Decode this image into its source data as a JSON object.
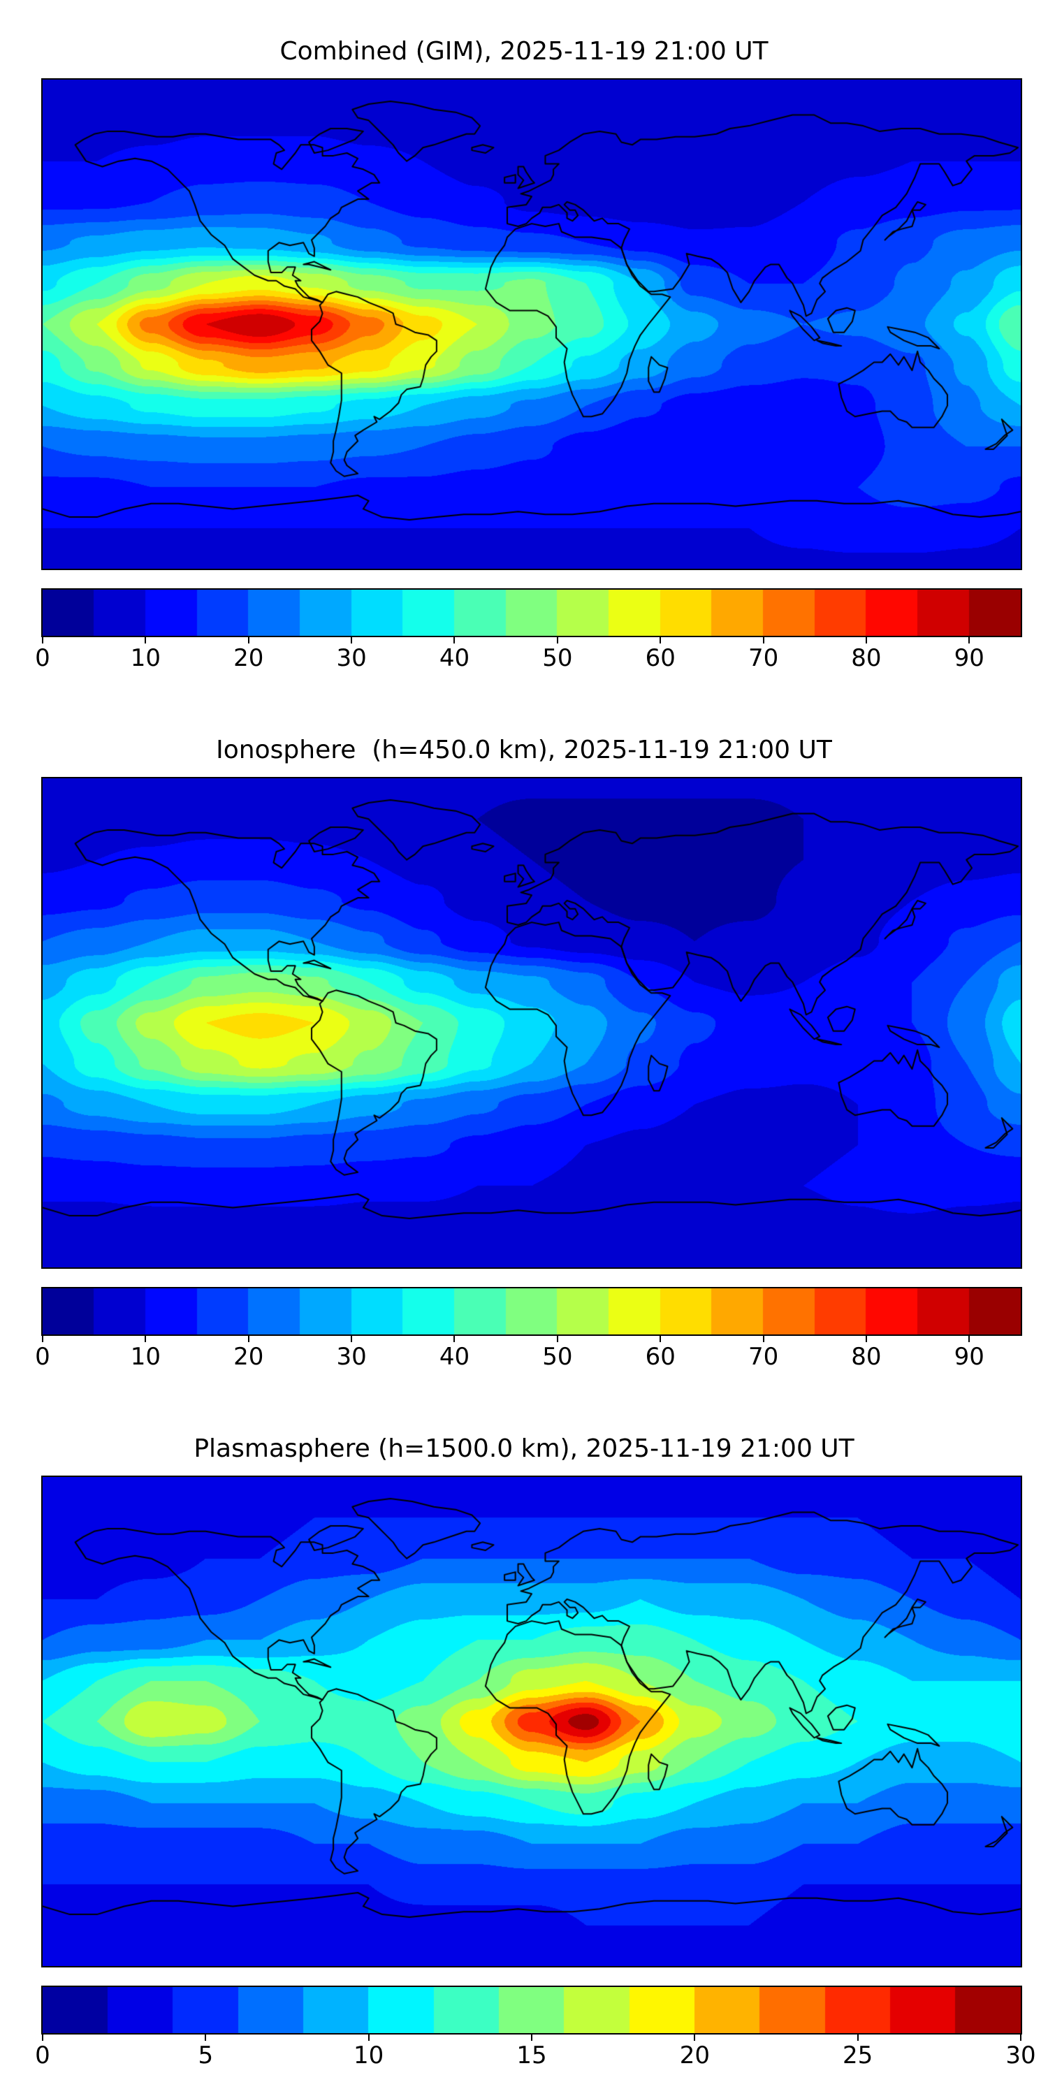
{
  "figure": {
    "background": "#ffffff"
  },
  "chart_data": [
    {
      "type": "heatmap",
      "title": "Combined (GIM), 2025-11-19 21:00 UT",
      "colormap": "jet",
      "projection": "equirectangular",
      "lon_range": [
        -180,
        180
      ],
      "lat_range": [
        -90,
        90
      ],
      "colorbar_orientation": "horizontal",
      "levels": {
        "vmin": 0,
        "vmax": 95,
        "step": 5
      },
      "colorbar_ticks": [
        0,
        10,
        20,
        30,
        40,
        50,
        60,
        70,
        80,
        90
      ],
      "grid_lons": [
        -180,
        -160,
        -140,
        -120,
        -100,
        -80,
        -60,
        -40,
        -20,
        0,
        20,
        40,
        60,
        80,
        100,
        120,
        140,
        160,
        180
      ],
      "grid_lats": [
        90,
        75,
        60,
        45,
        30,
        15,
        0,
        -15,
        -30,
        -45,
        -60,
        -75,
        -90
      ],
      "values": [
        [
          8,
          8,
          8,
          8,
          8,
          8,
          8,
          8,
          8,
          8,
          8,
          8,
          8,
          8,
          8,
          8,
          8,
          8,
          8
        ],
        [
          8,
          8,
          8,
          9,
          9,
          9,
          8,
          8,
          7,
          7,
          7,
          6,
          6,
          7,
          8,
          8,
          8,
          8,
          8
        ],
        [
          10,
          10,
          11,
          12,
          12,
          12,
          11,
          10,
          8,
          7,
          6,
          6,
          6,
          7,
          8,
          9,
          10,
          10,
          10
        ],
        [
          14,
          14,
          15,
          17,
          18,
          17,
          15,
          13,
          11,
          9,
          8,
          7,
          7,
          8,
          10,
          12,
          13,
          14,
          14
        ],
        [
          24,
          26,
          28,
          29,
          28,
          26,
          22,
          19,
          17,
          16,
          15,
          13,
          11,
          11,
          13,
          16,
          19,
          22,
          24
        ],
        [
          34,
          40,
          48,
          55,
          58,
          54,
          48,
          44,
          44,
          46,
          40,
          30,
          18,
          15,
          15,
          17,
          21,
          26,
          34
        ],
        [
          45,
          55,
          72,
          85,
          90,
          83,
          72,
          62,
          55,
          47,
          42,
          34,
          27,
          22,
          20,
          21,
          24,
          31,
          45
        ],
        [
          38,
          46,
          56,
          64,
          68,
          66,
          62,
          56,
          48,
          40,
          34,
          28,
          22,
          18,
          16,
          16,
          19,
          26,
          38
        ],
        [
          30,
          33,
          36,
          38,
          38,
          36,
          33,
          30,
          27,
          24,
          20,
          16,
          13,
          12,
          12,
          14,
          18,
          24,
          30
        ],
        [
          20,
          21,
          22,
          23,
          23,
          22,
          21,
          20,
          18,
          16,
          13,
          11,
          10,
          10,
          11,
          13,
          17,
          20,
          20
        ],
        [
          14,
          14,
          15,
          15,
          15,
          15,
          14,
          14,
          13,
          12,
          12,
          11,
          11,
          12,
          13,
          15,
          18,
          17,
          14
        ],
        [
          10,
          10,
          10,
          10,
          10,
          10,
          10,
          10,
          10,
          10,
          10,
          10,
          10,
          10,
          11,
          12,
          12,
          11,
          10
        ],
        [
          9,
          9,
          9,
          9,
          9,
          9,
          9,
          9,
          9,
          9,
          9,
          9,
          9,
          9,
          9,
          9,
          9,
          9,
          9
        ]
      ]
    },
    {
      "type": "heatmap",
      "title": "Ionosphere  (h=450.0 km), 2025-11-19 21:00 UT",
      "colormap": "jet",
      "projection": "equirectangular",
      "lon_range": [
        -180,
        180
      ],
      "lat_range": [
        -90,
        90
      ],
      "colorbar_orientation": "horizontal",
      "levels": {
        "vmin": 0,
        "vmax": 95,
        "step": 5
      },
      "colorbar_ticks": [
        0,
        10,
        20,
        30,
        40,
        50,
        60,
        70,
        80,
        90
      ],
      "grid_lons": [
        -180,
        -160,
        -140,
        -120,
        -100,
        -80,
        -60,
        -40,
        -20,
        0,
        20,
        40,
        60,
        80,
        100,
        120,
        140,
        160,
        180
      ],
      "grid_lats": [
        90,
        75,
        60,
        45,
        30,
        15,
        0,
        -15,
        -30,
        -45,
        -60,
        -75,
        -90
      ],
      "values": [
        [
          6,
          6,
          6,
          6,
          6,
          6,
          6,
          6,
          6,
          6,
          6,
          6,
          6,
          6,
          6,
          6,
          6,
          6,
          6
        ],
        [
          7,
          7,
          7,
          8,
          8,
          8,
          7,
          6,
          5,
          4,
          4,
          4,
          4,
          4,
          5,
          6,
          6,
          7,
          7
        ],
        [
          9,
          10,
          11,
          12,
          12,
          11,
          10,
          8,
          6,
          5,
          4,
          3,
          3,
          4,
          5,
          6,
          7,
          8,
          9
        ],
        [
          13,
          14,
          16,
          18,
          18,
          16,
          14,
          11,
          8,
          6,
          5,
          4,
          4,
          4,
          6,
          8,
          10,
          12,
          13
        ],
        [
          20,
          22,
          25,
          27,
          27,
          25,
          21,
          16,
          12,
          9,
          7,
          6,
          5,
          6,
          7,
          9,
          12,
          16,
          20
        ],
        [
          28,
          33,
          40,
          46,
          48,
          46,
          40,
          33,
          28,
          26,
          22,
          15,
          10,
          9,
          10,
          12,
          15,
          20,
          28
        ],
        [
          33,
          42,
          52,
          60,
          62,
          60,
          53,
          45,
          38,
          32,
          27,
          21,
          16,
          13,
          12,
          12,
          15,
          22,
          33
        ],
        [
          30,
          38,
          46,
          53,
          56,
          54,
          49,
          43,
          36,
          30,
          25,
          19,
          14,
          12,
          11,
          11,
          13,
          20,
          30
        ],
        [
          24,
          27,
          30,
          32,
          32,
          30,
          27,
          24,
          21,
          18,
          15,
          12,
          10,
          9,
          9,
          10,
          13,
          18,
          24
        ],
        [
          16,
          17,
          18,
          19,
          19,
          18,
          17,
          16,
          14,
          12,
          10,
          9,
          8,
          8,
          9,
          10,
          13,
          15,
          16
        ],
        [
          11,
          11,
          12,
          12,
          12,
          12,
          11,
          11,
          10,
          10,
          9,
          9,
          9,
          9,
          10,
          11,
          13,
          12,
          11
        ],
        [
          8,
          8,
          8,
          8,
          8,
          8,
          8,
          8,
          8,
          8,
          8,
          8,
          8,
          8,
          8,
          9,
          9,
          8,
          8
        ],
        [
          7,
          7,
          7,
          7,
          7,
          7,
          7,
          7,
          7,
          7,
          7,
          7,
          7,
          7,
          7,
          7,
          7,
          7,
          7
        ]
      ]
    },
    {
      "type": "heatmap",
      "title": "Plasmasphere (h=1500.0 km), 2025-11-19 21:00 UT",
      "colormap": "jet",
      "projection": "equirectangular",
      "lon_range": [
        -180,
        180
      ],
      "lat_range": [
        -90,
        90
      ],
      "colorbar_orientation": "horizontal",
      "levels": {
        "vmin": 0,
        "vmax": 30,
        "step": 2
      },
      "colorbar_ticks": [
        0,
        5,
        10,
        15,
        20,
        25,
        30
      ],
      "grid_lons": [
        -180,
        -160,
        -140,
        -120,
        -100,
        -80,
        -60,
        -40,
        -20,
        0,
        20,
        40,
        60,
        80,
        100,
        120,
        140,
        160,
        180
      ],
      "grid_lats": [
        90,
        75,
        60,
        45,
        30,
        15,
        0,
        -15,
        -30,
        -45,
        -60,
        -75,
        -90
      ],
      "values": [
        [
          3,
          3,
          3,
          3,
          3,
          3,
          3,
          3,
          3,
          3,
          3,
          3,
          3,
          3,
          3,
          3,
          3,
          3,
          3
        ],
        [
          3,
          3,
          3,
          3,
          3,
          4,
          4,
          4,
          4,
          4,
          4,
          4,
          4,
          4,
          4,
          4,
          3,
          3,
          3
        ],
        [
          3,
          3,
          3,
          4,
          4,
          5,
          5,
          6,
          6,
          6,
          6,
          6,
          6,
          6,
          5,
          5,
          4,
          4,
          3
        ],
        [
          4,
          4,
          5,
          5,
          6,
          7,
          8,
          9,
          9,
          9,
          9,
          10,
          9,
          9,
          8,
          7,
          6,
          5,
          4
        ],
        [
          6,
          7,
          7,
          8,
          8,
          9,
          10,
          11,
          12,
          12,
          13,
          13,
          12,
          11,
          10,
          9,
          8,
          7,
          6
        ],
        [
          10,
          12,
          14,
          14,
          13,
          12,
          11,
          12,
          14,
          17,
          18,
          16,
          14,
          13,
          12,
          11,
          10,
          10,
          10
        ],
        [
          12,
          14,
          18,
          17,
          14,
          13,
          13,
          15,
          19,
          25,
          29,
          22,
          17,
          15,
          13,
          12,
          11,
          11,
          12
        ],
        [
          10,
          11,
          12,
          12,
          11,
          11,
          12,
          14,
          16,
          19,
          20,
          17,
          14,
          12,
          11,
          10,
          9,
          9,
          10
        ],
        [
          7,
          7,
          8,
          8,
          8,
          8,
          9,
          10,
          11,
          12,
          13,
          11,
          10,
          9,
          8,
          8,
          7,
          7,
          7
        ],
        [
          5,
          5,
          5,
          5,
          5,
          6,
          6,
          7,
          7,
          8,
          8,
          8,
          7,
          7,
          6,
          6,
          5,
          5,
          5
        ],
        [
          4,
          4,
          4,
          4,
          4,
          4,
          4,
          5,
          5,
          5,
          5,
          5,
          5,
          5,
          4,
          4,
          4,
          4,
          4
        ],
        [
          3,
          3,
          3,
          3,
          3,
          3,
          3,
          3,
          3,
          3,
          4,
          4,
          4,
          4,
          3,
          3,
          3,
          3,
          3
        ],
        [
          3,
          3,
          3,
          3,
          3,
          3,
          3,
          3,
          3,
          3,
          3,
          3,
          3,
          3,
          3,
          3,
          3,
          3,
          3
        ]
      ]
    }
  ]
}
